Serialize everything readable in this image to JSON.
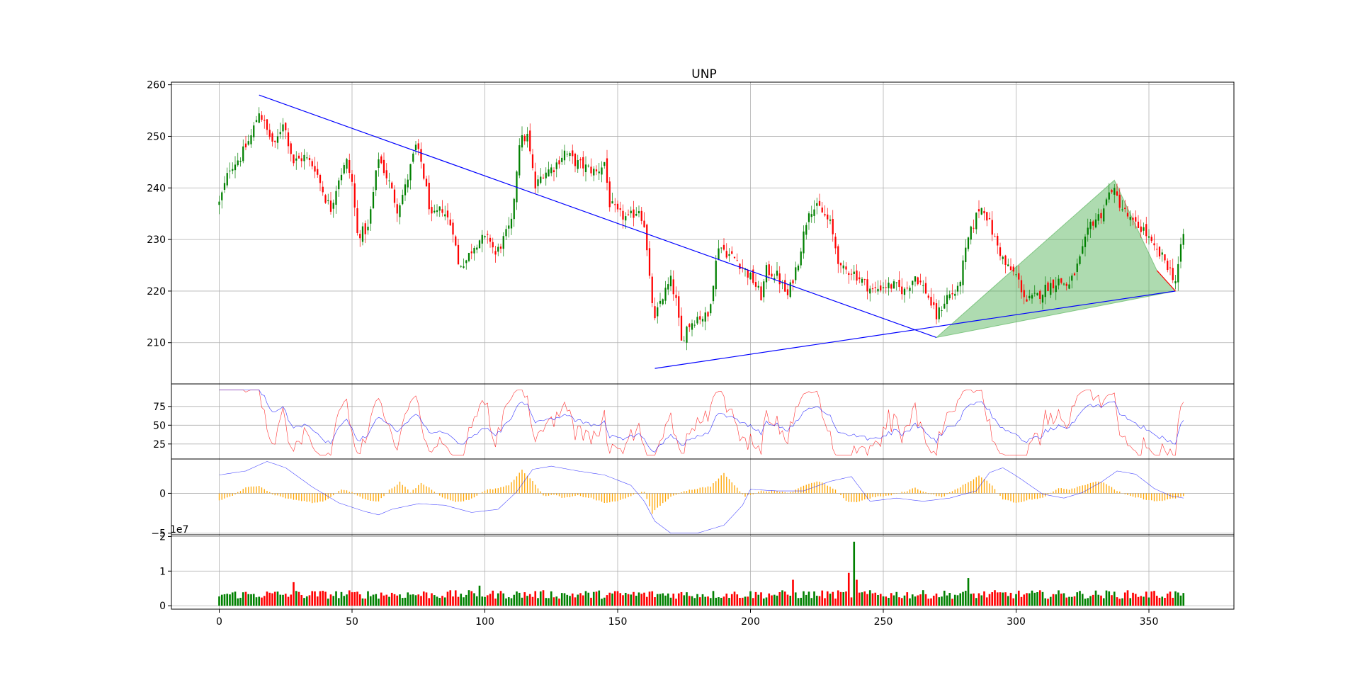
{
  "chart_data": {
    "type": "candlestick",
    "title": "UNP",
    "up_color": "#008000",
    "down_color": "#ff0000",
    "grid": true,
    "x": {
      "range": [
        -18,
        382
      ],
      "ticks": [
        0,
        50,
        100,
        150,
        200,
        250,
        300,
        350
      ]
    },
    "panels": {
      "price": {
        "ylim": [
          202,
          260.5
        ],
        "yticks": [
          210,
          220,
          230,
          240,
          250,
          260
        ],
        "close_anchors": [
          [
            0,
            237
          ],
          [
            4,
            244
          ],
          [
            8,
            246
          ],
          [
            12,
            250
          ],
          [
            15,
            255
          ],
          [
            18,
            251
          ],
          [
            21,
            248
          ],
          [
            24,
            253
          ],
          [
            28,
            245
          ],
          [
            32,
            246
          ],
          [
            36,
            244
          ],
          [
            40,
            238
          ],
          [
            42,
            236
          ],
          [
            45,
            242
          ],
          [
            48,
            245
          ],
          [
            50,
            241
          ],
          [
            52,
            231
          ],
          [
            56,
            232
          ],
          [
            60,
            246
          ],
          [
            64,
            241
          ],
          [
            67,
            236
          ],
          [
            70,
            240
          ],
          [
            74,
            248
          ],
          [
            76,
            245
          ],
          [
            80,
            234
          ],
          [
            84,
            236
          ],
          [
            88,
            232
          ],
          [
            90,
            225
          ],
          [
            93,
            226
          ],
          [
            96,
            229
          ],
          [
            98,
            230
          ],
          [
            102,
            230
          ],
          [
            104,
            227
          ],
          [
            106,
            229
          ],
          [
            110,
            233
          ],
          [
            113,
            249
          ],
          [
            116,
            250
          ],
          [
            119,
            240
          ],
          [
            122,
            243
          ],
          [
            126,
            244
          ],
          [
            130,
            247
          ],
          [
            134,
            245
          ],
          [
            138,
            244
          ],
          [
            142,
            243
          ],
          [
            145,
            245
          ],
          [
            147,
            237
          ],
          [
            150,
            235
          ],
          [
            154,
            234
          ],
          [
            158,
            236
          ],
          [
            160,
            233
          ],
          [
            162,
            222
          ],
          [
            164,
            214
          ],
          [
            166,
            218
          ],
          [
            170,
            222
          ],
          [
            172,
            218
          ],
          [
            174,
            210
          ],
          [
            176,
            213
          ],
          [
            180,
            215
          ],
          [
            184,
            215
          ],
          [
            188,
            229
          ],
          [
            192,
            227
          ],
          [
            195,
            226
          ],
          [
            198,
            224
          ],
          [
            201,
            222
          ],
          [
            204,
            219
          ],
          [
            206,
            224
          ],
          [
            210,
            223
          ],
          [
            214,
            219
          ],
          [
            218,
            226
          ],
          [
            222,
            236
          ],
          [
            226,
            236
          ],
          [
            230,
            233
          ],
          [
            234,
            224
          ],
          [
            238,
            224
          ],
          [
            242,
            222
          ],
          [
            246,
            220
          ],
          [
            250,
            221
          ],
          [
            254,
            221
          ],
          [
            258,
            220
          ],
          [
            262,
            223
          ],
          [
            266,
            220
          ],
          [
            270,
            215
          ],
          [
            274,
            219
          ],
          [
            278,
            220
          ],
          [
            282,
            230
          ],
          [
            286,
            236
          ],
          [
            288,
            236
          ],
          [
            292,
            230
          ],
          [
            296,
            225
          ],
          [
            300,
            223
          ],
          [
            304,
            218
          ],
          [
            308,
            219
          ],
          [
            312,
            221
          ],
          [
            316,
            222
          ],
          [
            320,
            221
          ],
          [
            324,
            226
          ],
          [
            328,
            233
          ],
          [
            332,
            235
          ],
          [
            336,
            240
          ],
          [
            340,
            236
          ],
          [
            344,
            233
          ],
          [
            348,
            232
          ],
          [
            352,
            228
          ],
          [
            356,
            226
          ],
          [
            360,
            222
          ],
          [
            363,
            231
          ]
        ],
        "trendlines": [
          {
            "x": [
              15,
              270
            ],
            "y": [
              258,
              211
            ],
            "color": "#0000ff"
          },
          {
            "x": [
              164,
              360
            ],
            "y": [
              205,
              220
            ],
            "color": "#0000ff"
          },
          {
            "x": [
              353,
              360
            ],
            "y": [
              224,
              220
            ],
            "color": "#ff0000"
          }
        ],
        "pattern": {
          "points": [
            [
              270,
              211
            ],
            [
              337,
              241.5
            ],
            [
              353,
              224
            ],
            [
              360,
              220
            ]
          ],
          "fill": "#4caf50",
          "fill_opacity": 0.45
        }
      },
      "rsi": {
        "ylim": [
          5,
          105
        ],
        "yticks": [
          25,
          50,
          75
        ],
        "fast_color": "#ff0000",
        "slow_color": "#0000ff"
      },
      "macd": {
        "ylim": [
          -5.2,
          4.3
        ],
        "yticks": [
          -5,
          0
        ],
        "scale_label": "1e7",
        "line_color": "#0000ff",
        "hist_color": "#ffa500",
        "line_anchors": [
          [
            0,
            2.3
          ],
          [
            10,
            2.8
          ],
          [
            18,
            4.0
          ],
          [
            25,
            3.2
          ],
          [
            35,
            0.8
          ],
          [
            45,
            -1.2
          ],
          [
            55,
            -2.3
          ],
          [
            60,
            -2.7
          ],
          [
            65,
            -2.0
          ],
          [
            75,
            -1.3
          ],
          [
            85,
            -1.5
          ],
          [
            95,
            -2.4
          ],
          [
            105,
            -2.0
          ],
          [
            112,
            0.2
          ],
          [
            118,
            3.0
          ],
          [
            125,
            3.4
          ],
          [
            135,
            2.8
          ],
          [
            145,
            2.3
          ],
          [
            155,
            1.0
          ],
          [
            160,
            -1.0
          ],
          [
            164,
            -3.5
          ],
          [
            170,
            -5.0
          ],
          [
            180,
            -5.0
          ],
          [
            190,
            -4.0
          ],
          [
            197,
            -1.5
          ],
          [
            200,
            0.5
          ],
          [
            210,
            0.3
          ],
          [
            220,
            0.3
          ],
          [
            230,
            1.5
          ],
          [
            238,
            2.1
          ],
          [
            245,
            -1.0
          ],
          [
            255,
            -0.6
          ],
          [
            265,
            -1.0
          ],
          [
            275,
            -0.6
          ],
          [
            285,
            0.3
          ],
          [
            290,
            2.6
          ],
          [
            295,
            3.2
          ],
          [
            300,
            2.2
          ],
          [
            310,
            -0.1
          ],
          [
            318,
            -0.6
          ],
          [
            325,
            0.1
          ],
          [
            332,
            1.4
          ],
          [
            338,
            2.8
          ],
          [
            345,
            2.4
          ],
          [
            352,
            0.6
          ],
          [
            358,
            -0.3
          ],
          [
            363,
            -0.6
          ]
        ],
        "hist_anchors": [
          [
            0,
            -0.9
          ],
          [
            5,
            -0.3
          ],
          [
            10,
            0.7
          ],
          [
            15,
            1.0
          ],
          [
            20,
            -0.1
          ],
          [
            25,
            -0.6
          ],
          [
            30,
            -0.9
          ],
          [
            36,
            -1.2
          ],
          [
            40,
            -0.9
          ],
          [
            46,
            0.5
          ],
          [
            50,
            0.1
          ],
          [
            55,
            -0.8
          ],
          [
            60,
            -1.0
          ],
          [
            64,
            0.4
          ],
          [
            68,
            1.4
          ],
          [
            72,
            0.1
          ],
          [
            76,
            1.3
          ],
          [
            80,
            0.5
          ],
          [
            85,
            -0.7
          ],
          [
            90,
            -1.1
          ],
          [
            95,
            -0.7
          ],
          [
            100,
            0.4
          ],
          [
            104,
            0.6
          ],
          [
            109,
            1.0
          ],
          [
            114,
            2.9
          ],
          [
            118,
            1.6
          ],
          [
            122,
            -0.3
          ],
          [
            126,
            -0.2
          ],
          [
            130,
            -0.6
          ],
          [
            135,
            -0.3
          ],
          [
            140,
            -0.6
          ],
          [
            145,
            -1.2
          ],
          [
            150,
            -1.0
          ],
          [
            155,
            -0.3
          ],
          [
            160,
            0.2
          ],
          [
            163,
            -2.5
          ],
          [
            166,
            -1.5
          ],
          [
            170,
            -0.5
          ],
          [
            175,
            0.3
          ],
          [
            180,
            0.6
          ],
          [
            185,
            0.9
          ],
          [
            190,
            2.5
          ],
          [
            194,
            1.0
          ],
          [
            198,
            -0.4
          ],
          [
            204,
            0.3
          ],
          [
            210,
            0.3
          ],
          [
            215,
            0.1
          ],
          [
            220,
            1.0
          ],
          [
            226,
            1.5
          ],
          [
            232,
            0.4
          ],
          [
            236,
            -1.0
          ],
          [
            240,
            -1.1
          ],
          [
            246,
            -0.5
          ],
          [
            252,
            -0.3
          ],
          [
            258,
            0.2
          ],
          [
            262,
            0.7
          ],
          [
            266,
            0.1
          ],
          [
            272,
            -0.5
          ],
          [
            280,
            1.0
          ],
          [
            286,
            2.2
          ],
          [
            290,
            1.3
          ],
          [
            295,
            -0.7
          ],
          [
            300,
            -1.2
          ],
          [
            305,
            -0.8
          ],
          [
            310,
            -0.6
          ],
          [
            316,
            0.7
          ],
          [
            320,
            0.5
          ],
          [
            325,
            1.0
          ],
          [
            330,
            1.5
          ],
          [
            334,
            1.2
          ],
          [
            338,
            0.3
          ],
          [
            342,
            -0.3
          ],
          [
            348,
            -0.7
          ],
          [
            352,
            -1.0
          ],
          [
            356,
            -0.9
          ],
          [
            360,
            -0.6
          ],
          [
            363,
            -0.4
          ]
        ]
      },
      "volume": {
        "ylim": [
          -0.1,
          2.05
        ],
        "yticks": [
          0,
          1,
          2
        ],
        "scale_label": "1e7",
        "spikes": [
          [
            28,
            0.68
          ],
          [
            98,
            0.58
          ],
          [
            237,
            0.95
          ],
          [
            239,
            1.85
          ],
          [
            240,
            0.75
          ],
          [
            282,
            0.8
          ],
          [
            216,
            0.75
          ]
        ]
      }
    }
  }
}
